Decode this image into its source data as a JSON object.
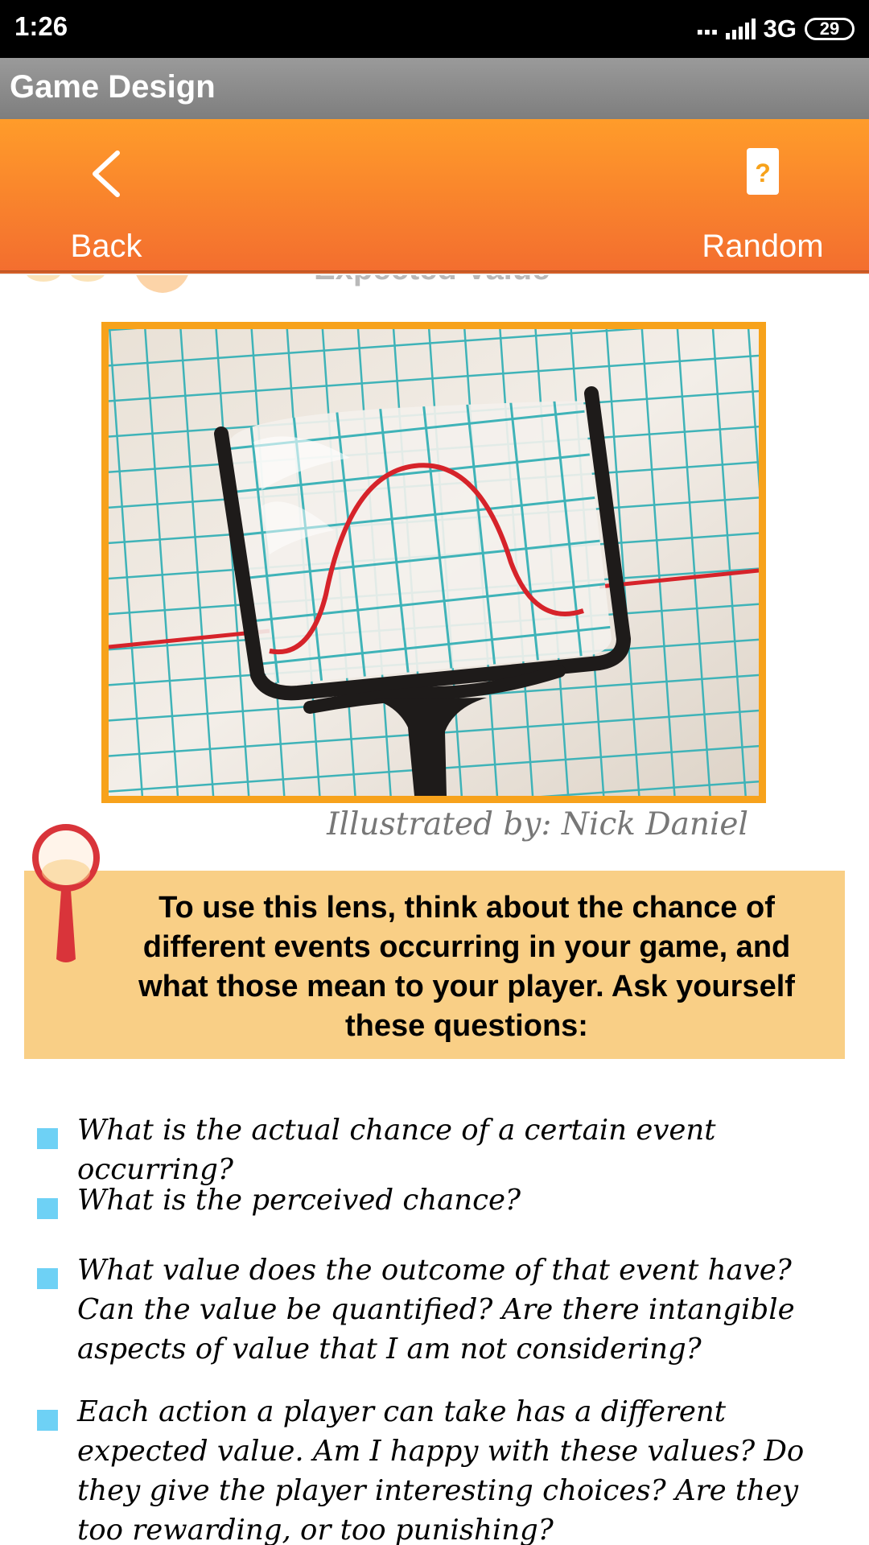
{
  "status_bar": {
    "time": "1:26",
    "dots": "...",
    "network": "3G",
    "battery": "29"
  },
  "app": {
    "title": "Game Design"
  },
  "toolbar": {
    "back_label": "Back",
    "back_icon": "chevron-left-icon",
    "random_label": "Random",
    "random_icon": "question-card-icon"
  },
  "lens": {
    "title_peek": "Expected Value",
    "illustration_caption": "Illustrated by: Nick Daniel",
    "instruction": "To use this lens, think about the chance of different events occurring in your game, and what those mean to your player.  Ask yourself these questions:",
    "questions": [
      "What is the actual chance of a certain event occurring?",
      "What is the perceived chance?",
      "What value does the outcome of that event have?  Can the value be quantified?  Are there intangible aspects of value that I am not considering?",
      "Each action a player can take has a different expected value.  Am I happy with these values?  Do they give the player interesting choices?  Are they too rewarding, or too punishing?"
    ]
  },
  "colors": {
    "toolbar_top": "#ff9c2a",
    "toolbar_bottom": "#f36d2f",
    "frame": "#f7a21b",
    "callout_bg": "#f9cf86",
    "bullet": "#6ed1f5"
  }
}
